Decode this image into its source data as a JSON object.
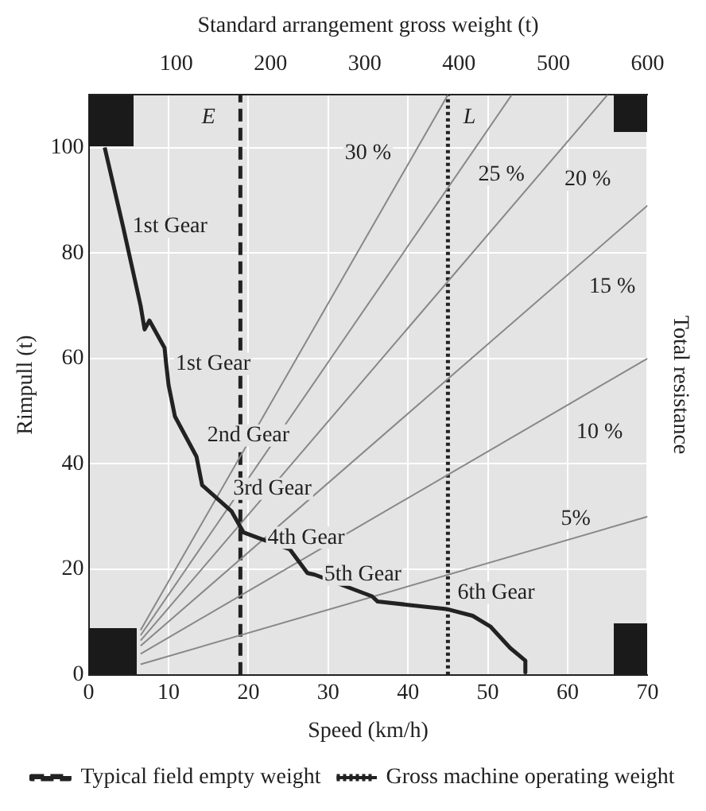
{
  "chart_data": {
    "type": "line",
    "xlabel": "Speed (km/h)",
    "ylabel": "Rimpull (t)",
    "x2label": "Standard arrangement gross weight (t)",
    "y2label": "Total resistance",
    "xlim": [
      0,
      70
    ],
    "xticks": [
      0,
      10,
      20,
      30,
      40,
      50,
      60,
      70
    ],
    "ylim": [
      0,
      110
    ],
    "yticks": [
      0,
      20,
      40,
      60,
      80,
      100
    ],
    "x2lim": [
      7,
      600
    ],
    "x2ticks": [
      100,
      200,
      300,
      400,
      500,
      600
    ],
    "grid": true,
    "legend": "bottom",
    "marker": "none",
    "series": [
      {
        "color": "#222222",
        "x": [
          2,
          4.3,
          6.5,
          7,
          7.6,
          9.5,
          9.7,
          10,
          10.8,
          13.5,
          14.2,
          17.9,
          19.4,
          21.2,
          25.2,
          27.4,
          28.3,
          35.5,
          36.2,
          44.8,
          48.1,
          50.3,
          52.8,
          54.7,
          54.7
        ],
        "values": [
          100,
          85,
          70,
          65.5,
          67.2,
          62,
          59,
          55,
          49,
          41.4,
          36,
          31,
          27,
          26,
          23.8,
          19.3,
          19,
          14.9,
          13.9,
          12.5,
          11.2,
          9.2,
          5.1,
          2.7,
          0.5
        ]
      },
      {
        "color": "#888888",
        "x": [
          6.5,
          70
        ],
        "values": [
          2,
          30
        ]
      },
      {
        "color": "#888888",
        "x": [
          6.5,
          70
        ],
        "values": [
          4,
          60
        ]
      },
      {
        "color": "#888888",
        "x": [
          6.5,
          70
        ],
        "values": [
          5.5,
          89
        ]
      },
      {
        "color": "#888888",
        "x": [
          6.5,
          65
        ],
        "values": [
          6.5,
          110
        ]
      },
      {
        "color": "#888888",
        "x": [
          6.5,
          53
        ],
        "values": [
          7.5,
          110
        ]
      },
      {
        "color": "#888888",
        "x": [
          6.5,
          45
        ],
        "values": [
          8.5,
          110
        ]
      },
      {
        "name": "Typical field empty weight",
        "color": "#222222",
        "line_style": "dashed",
        "x": [
          19,
          19
        ],
        "values": [
          0,
          110
        ]
      },
      {
        "name": "Gross machine operating weight",
        "color": "#222222",
        "line_style": "dotted",
        "x": [
          45,
          45
        ],
        "values": [
          0,
          110
        ]
      }
    ],
    "annotations": [
      {
        "text": "1st Gear",
        "x": 4.3,
        "y": 85
      },
      {
        "text": "1st Gear",
        "x": 9.7,
        "y": 59
      },
      {
        "text": "2nd Gear",
        "x": 20,
        "y": 45.4
      },
      {
        "text": "3rd Gear",
        "x": 23,
        "y": 35.3
      },
      {
        "text": "4th Gear",
        "x": 21.2,
        "y": 26
      },
      {
        "text": "5th Gear",
        "x": 28.3,
        "y": 19
      },
      {
        "text": "6th Gear",
        "x": 45,
        "y": 15.6
      },
      {
        "text": "30 %",
        "x": 35,
        "y": 99
      },
      {
        "text": "25 %",
        "x": 51.7,
        "y": 94.9
      },
      {
        "text": "20 %",
        "x": 62.5,
        "y": 93.9
      },
      {
        "text": "15 %",
        "x": 65.6,
        "y": 73.6
      },
      {
        "text": "10 %",
        "x": 64,
        "y": 46
      },
      {
        "text": "5%",
        "x": 61,
        "y": 29.5
      },
      {
        "text": "E",
        "x": 15,
        "y": 105.7
      },
      {
        "text": "L",
        "x": 47.7,
        "y": 105.7
      }
    ]
  }
}
